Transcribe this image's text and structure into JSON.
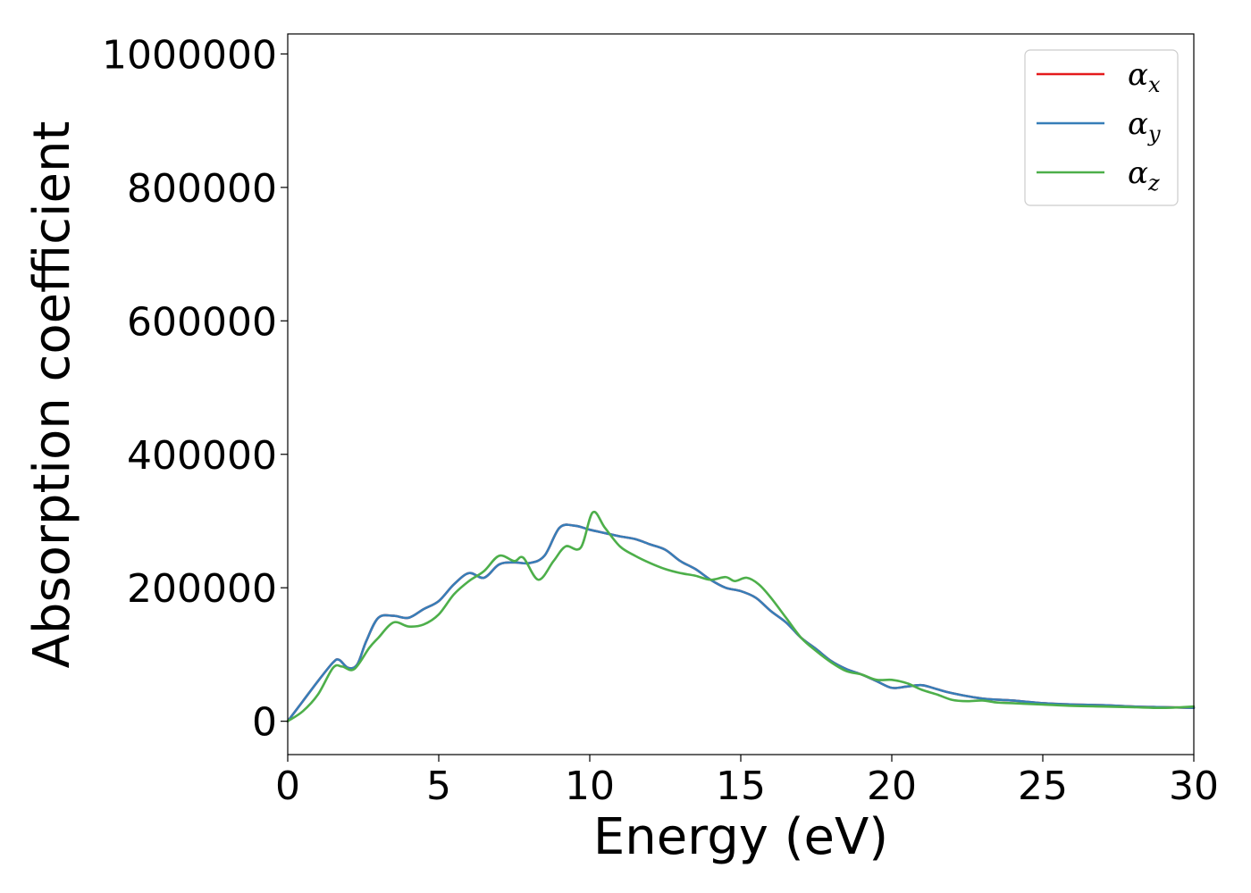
{
  "chart_data": {
    "type": "line",
    "xlabel": "Energy (eV)",
    "ylabel": "Absorption coefficient",
    "xlim": [
      0,
      30
    ],
    "ylim": [
      -50000,
      1030000
    ],
    "xticks": [
      0,
      5,
      10,
      15,
      20,
      25,
      30
    ],
    "xtick_labels": [
      "0",
      "5",
      "10",
      "15",
      "20",
      "25",
      "30"
    ],
    "yticks": [
      0,
      200000,
      400000,
      600000,
      800000,
      1000000
    ],
    "ytick_labels": [
      "0",
      "200000",
      "400000",
      "600000",
      "800000",
      "1000000"
    ],
    "grid": false,
    "legend_position": "top-right",
    "series": [
      {
        "name": "α",
        "subscript": "x",
        "color": "#e41a1c",
        "x": [
          0,
          0.5,
          1,
          1.5,
          1.7,
          2,
          2.3,
          2.6,
          3,
          3.5,
          4,
          4.5,
          5,
          5.5,
          6,
          6.5,
          7,
          7.5,
          8,
          8.5,
          9,
          9.5,
          10,
          10.5,
          11,
          11.5,
          12,
          12.5,
          13,
          13.5,
          14,
          14.5,
          15,
          15.5,
          16,
          16.5,
          17,
          17.5,
          18,
          18.5,
          19,
          19.5,
          20,
          20.5,
          21,
          21.5,
          22,
          23,
          24,
          25,
          26,
          27,
          28,
          29,
          30
        ],
        "y": [
          0,
          30000,
          60000,
          88000,
          92000,
          80000,
          85000,
          120000,
          155000,
          158000,
          155000,
          168000,
          180000,
          205000,
          222000,
          215000,
          235000,
          238000,
          237000,
          248000,
          290000,
          293000,
          287000,
          282000,
          277000,
          273000,
          265000,
          257000,
          240000,
          228000,
          212000,
          200000,
          195000,
          185000,
          165000,
          148000,
          125000,
          108000,
          90000,
          78000,
          70000,
          60000,
          50000,
          52000,
          54000,
          48000,
          42000,
          34000,
          31000,
          27000,
          25000,
          24000,
          22000,
          21000,
          20000
        ]
      },
      {
        "name": "α",
        "subscript": "y",
        "color": "#377eb8",
        "x": [
          0,
          0.5,
          1,
          1.5,
          1.7,
          2,
          2.3,
          2.6,
          3,
          3.5,
          4,
          4.5,
          5,
          5.5,
          6,
          6.5,
          7,
          7.5,
          8,
          8.5,
          9,
          9.5,
          10,
          10.5,
          11,
          11.5,
          12,
          12.5,
          13,
          13.5,
          14,
          14.5,
          15,
          15.5,
          16,
          16.5,
          17,
          17.5,
          18,
          18.5,
          19,
          19.5,
          20,
          20.5,
          21,
          21.5,
          22,
          23,
          24,
          25,
          26,
          27,
          28,
          29,
          30
        ],
        "y": [
          0,
          30000,
          60000,
          88000,
          92000,
          80000,
          85000,
          120000,
          155000,
          158000,
          155000,
          168000,
          180000,
          205000,
          222000,
          215000,
          235000,
          238000,
          237000,
          248000,
          290000,
          293000,
          287000,
          282000,
          277000,
          273000,
          265000,
          257000,
          240000,
          228000,
          212000,
          200000,
          195000,
          185000,
          165000,
          148000,
          125000,
          108000,
          90000,
          78000,
          70000,
          60000,
          50000,
          52000,
          54000,
          48000,
          42000,
          34000,
          31000,
          27000,
          25000,
          24000,
          22000,
          21000,
          20000
        ]
      },
      {
        "name": "α",
        "subscript": "z",
        "color": "#4daf4a",
        "x": [
          0,
          0.5,
          1,
          1.5,
          1.8,
          2.2,
          2.7,
          3,
          3.5,
          4,
          4.5,
          5,
          5.5,
          6,
          6.5,
          7,
          7.5,
          7.8,
          8.3,
          8.8,
          9.2,
          9.7,
          10.1,
          10.5,
          11,
          11.5,
          12,
          12.5,
          13,
          13.5,
          14,
          14.5,
          14.8,
          15.2,
          15.6,
          16,
          16.5,
          17,
          17.5,
          18,
          18.5,
          19,
          19.5,
          20,
          20.5,
          21,
          21.5,
          22,
          22.5,
          23,
          23.5,
          24,
          25,
          26,
          27,
          28,
          29,
          30
        ],
        "y": [
          0,
          15000,
          40000,
          80000,
          82000,
          78000,
          110000,
          125000,
          148000,
          142000,
          145000,
          160000,
          190000,
          210000,
          225000,
          248000,
          240000,
          245000,
          212000,
          240000,
          262000,
          260000,
          313000,
          290000,
          262000,
          248000,
          237000,
          228000,
          222000,
          218000,
          212000,
          216000,
          210000,
          215000,
          205000,
          185000,
          155000,
          125000,
          105000,
          88000,
          75000,
          70000,
          62000,
          62000,
          57000,
          47000,
          40000,
          32000,
          30000,
          31000,
          28000,
          27000,
          25000,
          23000,
          22000,
          21000,
          20000,
          22000
        ]
      }
    ]
  }
}
